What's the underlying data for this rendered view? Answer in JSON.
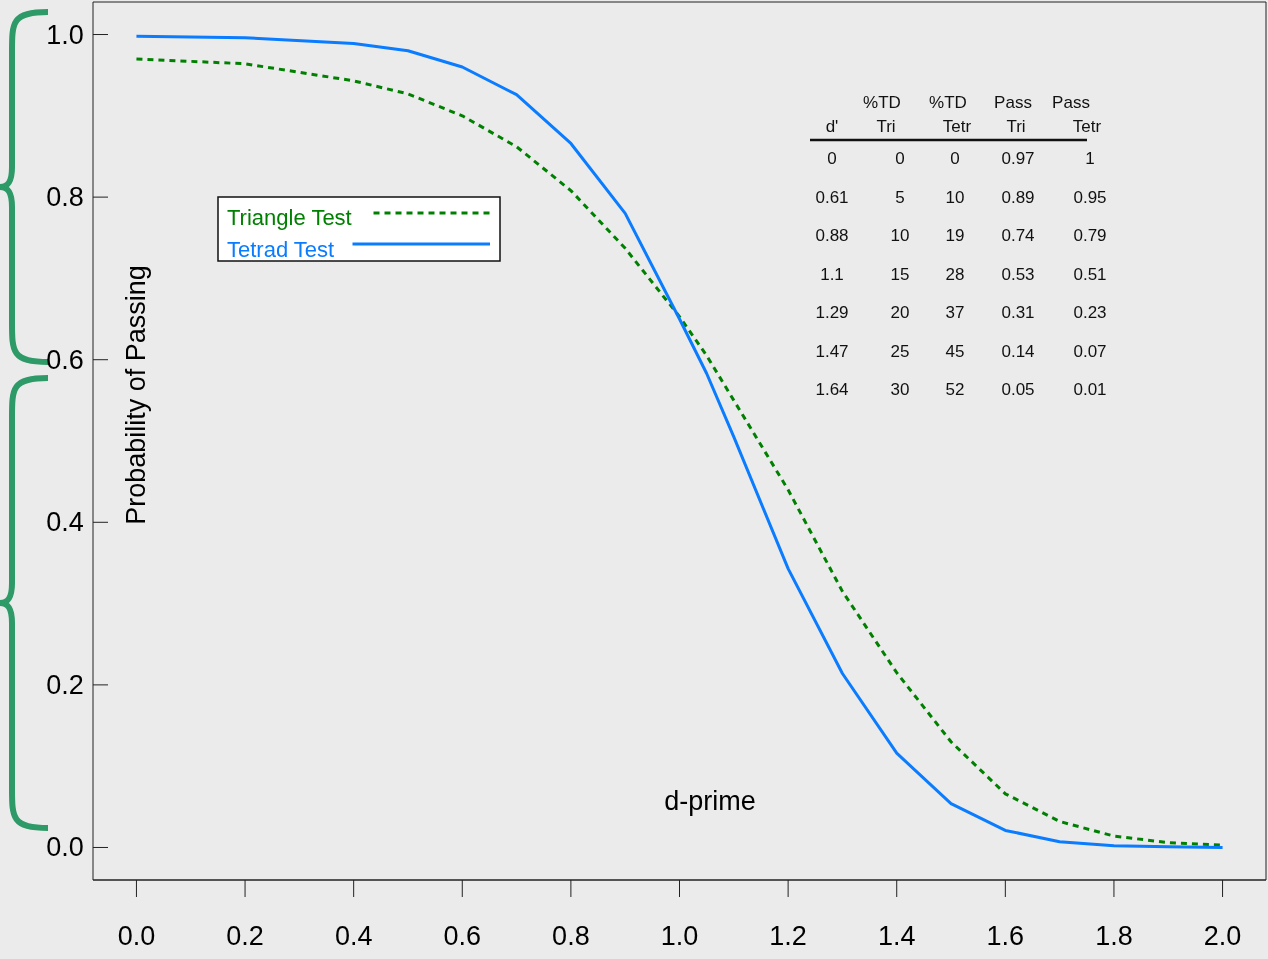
{
  "chart_data": {
    "type": "line",
    "xlabel": "d-prime",
    "ylabel": "Probability of Passing",
    "xlim": [
      -0.08,
      2.08
    ],
    "xticks": [
      {
        "value": 0,
        "label": "0.0"
      },
      0.2,
      0.4,
      0.6,
      0.8,
      {
        "value": 1,
        "label": "1.0"
      },
      1.2,
      1.4,
      1.6,
      1.8,
      {
        "value": 2,
        "label": "2.0"
      }
    ],
    "ylim": [
      -0.04,
      1.04
    ],
    "yticks": [
      {
        "value": 0,
        "label": "0.0"
      },
      0.2,
      0.4,
      0.6,
      0.8,
      {
        "value": 1,
        "label": "1.0"
      }
    ],
    "x": [
      0,
      0.2,
      0.4,
      0.5,
      0.6,
      0.7,
      0.8,
      0.9,
      1.0,
      1.05,
      1.1,
      1.2,
      1.3,
      1.4,
      1.5,
      1.6,
      1.7,
      1.8,
      1.9,
      2.0
    ],
    "series": [
      {
        "name": "Triangle Test",
        "color": "#008000",
        "line_style": "dashed",
        "values": [
          0.97,
          0.964,
          0.943,
          0.927,
          0.9,
          0.862,
          0.808,
          0.737,
          0.653,
          0.605,
          0.55,
          0.44,
          0.315,
          0.215,
          0.13,
          0.066,
          0.032,
          0.014,
          0.006,
          0.003
        ]
      },
      {
        "name": "Tetrad Test",
        "color": "#0a7cff",
        "line_style": "solid",
        "values": [
          0.998,
          0.996,
          0.989,
          0.98,
          0.96,
          0.926,
          0.866,
          0.78,
          0.65,
          0.583,
          0.505,
          0.343,
          0.214,
          0.116,
          0.054,
          0.021,
          0.007,
          0.002,
          0.001,
          0.0
        ]
      }
    ],
    "legend": "top left",
    "grid": false,
    "annotations": [
      "%TD",
      "%TD",
      "Pass",
      "Pass",
      "d'",
      "Tri",
      "Tetr",
      "Tri",
      "Tetr",
      "0",
      "0",
      "0",
      "0.97",
      "1",
      "0.61",
      "5",
      "10",
      "0.89",
      "0.95",
      "0.88",
      "10",
      "19",
      "0.74",
      "0.79",
      "1.1",
      "15",
      "28",
      "0.53",
      "0.51",
      "1.29",
      "20",
      "37",
      "0.31",
      "0.23",
      "1.47",
      "25",
      "45",
      "0.14",
      "0.07",
      "1.64",
      "30",
      "52",
      "0.05",
      "0.01"
    ]
  }
}
